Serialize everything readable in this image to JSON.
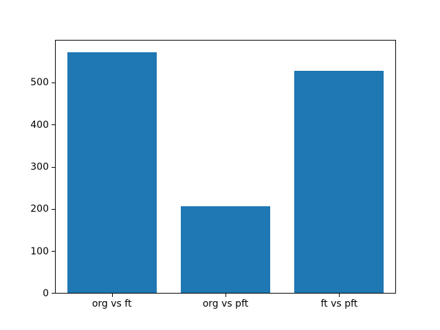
{
  "figure": {
    "background": "#ffffff"
  },
  "chart_data": {
    "type": "bar",
    "categories": [
      "org vs ft",
      "org vs pft",
      "ft vs pft"
    ],
    "values": [
      570,
      206,
      526
    ],
    "title": "",
    "xlabel": "",
    "ylabel": "",
    "ylim": [
      0,
      598.5
    ],
    "yticks": [
      0,
      100,
      200,
      300,
      400,
      500
    ],
    "bar_color": "#1f77b4",
    "axis_color": "#000000",
    "grid": false
  }
}
